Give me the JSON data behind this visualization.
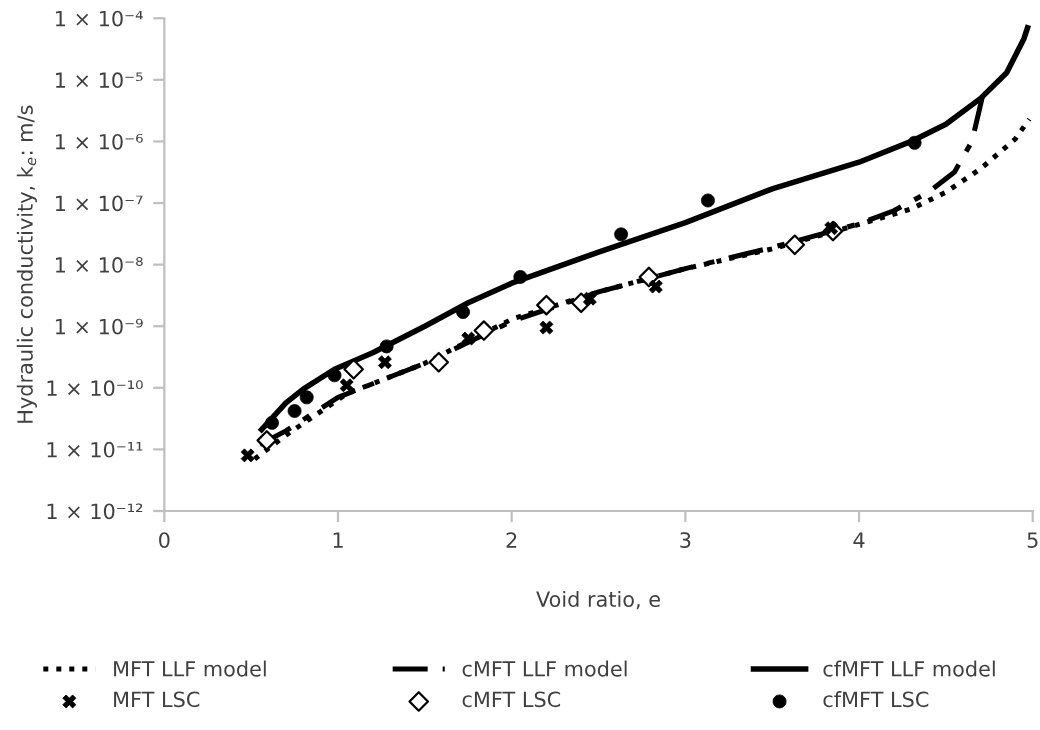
{
  "chart_data": {
    "type": "line",
    "xlabel": "Void ratio, e",
    "ylabel": "Hydraulic conductivity, k$_{e}$: m/s",
    "log": "y",
    "grid": false,
    "legend": "bottom",
    "xlim": [
      0,
      5
    ],
    "xticks": [
      0,
      1,
      2,
      3,
      4,
      5
    ],
    "ylim": [
      1e-12,
      0.0001
    ],
    "yticks": [
      {
        "value": 1e-12,
        "label": "1 × 10⁻¹²"
      },
      {
        "value": 1e-11,
        "label": "1 × 10⁻¹¹"
      },
      {
        "value": 1e-10,
        "label": "1 × 10⁻¹⁰"
      },
      {
        "value": 1e-09,
        "label": "1 × 10⁻⁹"
      },
      {
        "value": 1e-08,
        "label": "1 × 10⁻⁸"
      },
      {
        "value": 1e-07,
        "label": "1 × 10⁻⁷"
      },
      {
        "value": 1e-06,
        "label": "1 × 10⁻⁶"
      },
      {
        "value": 1e-05,
        "label": "1 × 10⁻⁵"
      },
      {
        "value": 0.0001,
        "label": "1 × 10⁻⁴"
      }
    ],
    "series": [
      {
        "name": "MFT LLF model",
        "line_style": "dotted",
        "marker": "none",
        "color": "#000000",
        "x": [
          0.52,
          0.7,
          1.05,
          1.5,
          2.0,
          2.5,
          3.0,
          3.5,
          4.0,
          4.3,
          4.5,
          4.7,
          4.9,
          4.98
        ],
        "values": [
          7e-12,
          1.7e-11,
          8e-11,
          2.5e-10,
          1.3e-09,
          3.6e-09,
          8.6e-09,
          1.8e-08,
          4.5e-08,
          8e-08,
          1.5e-07,
          3.6e-07,
          1.1e-06,
          2.3e-06
        ]
      },
      {
        "name": "cMFT LLF model",
        "line_style": "dashed",
        "marker": "none",
        "color": "#000000",
        "x": [
          0.55,
          0.7,
          1.0,
          1.5,
          2.0,
          2.5,
          3.0,
          3.5,
          4.0,
          4.2,
          4.4,
          4.55,
          4.65,
          4.7,
          4.72
        ],
        "values": [
          1.2e-11,
          2e-11,
          7e-11,
          2.5e-10,
          1.2e-09,
          3.6e-09,
          8.6e-09,
          1.9e-08,
          4.6e-08,
          7.5e-08,
          1.5e-07,
          3.2e-07,
          1e-06,
          4e-06,
          7e-06
        ]
      },
      {
        "name": "cfMFT LLF model",
        "line_style": "solid",
        "marker": "none",
        "color": "#000000",
        "x": [
          0.56,
          0.7,
          0.8,
          0.98,
          1.2,
          1.5,
          1.75,
          2.0,
          2.5,
          3.0,
          3.5,
          4.0,
          4.3,
          4.5,
          4.7,
          4.85,
          4.95,
          4.97
        ],
        "values": [
          2.1e-11,
          5.7e-11,
          9.5e-11,
          2e-10,
          3.7e-10,
          1e-09,
          2.4e-09,
          5e-09,
          1.6e-08,
          4.8e-08,
          1.7e-07,
          4.6e-07,
          1e-06,
          1.9e-06,
          5e-06,
          1.3e-05,
          4.7e-05,
          7e-05
        ]
      },
      {
        "name": "MFT LSC",
        "type": "scatter",
        "marker": "cross",
        "color": "#000000",
        "x": [
          0.48,
          1.05,
          1.27,
          1.75,
          2.2,
          2.45,
          2.83,
          3.84
        ],
        "values": [
          8e-12,
          1.1e-10,
          2.6e-10,
          6.3e-10,
          9.5e-10,
          2.8e-09,
          4.4e-09,
          3.9e-08
        ]
      },
      {
        "name": "cMFT LSC",
        "type": "scatter",
        "marker": "diamond",
        "color": "#000000",
        "x": [
          0.59,
          1.09,
          1.58,
          1.84,
          2.2,
          2.4,
          2.79,
          3.63,
          3.85
        ],
        "values": [
          1.4e-11,
          2e-10,
          2.6e-10,
          8.5e-10,
          2.2e-09,
          2.4e-09,
          6.3e-09,
          2.1e-08,
          3.5e-08
        ]
      },
      {
        "name": "cfMFT LSC",
        "type": "scatter",
        "marker": "circle",
        "color": "#000000",
        "x": [
          0.62,
          0.75,
          0.82,
          0.98,
          1.28,
          1.72,
          2.05,
          2.63,
          3.13,
          4.32
        ],
        "values": [
          2.7e-11,
          4.2e-11,
          7e-11,
          1.6e-10,
          4.7e-10,
          1.7e-09,
          6.3e-09,
          3.1e-08,
          1.1e-07,
          9.5e-07
        ]
      }
    ]
  }
}
